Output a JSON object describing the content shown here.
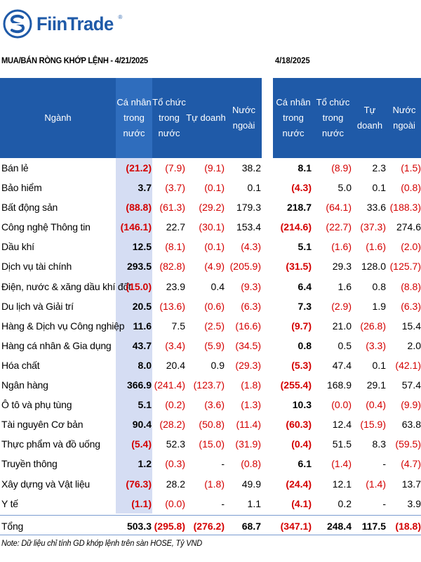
{
  "logo": {
    "text": "FiinTrade",
    "reg": "®"
  },
  "title_left": "MUA/BÁN RÒNG KHỚP LỆNH - 4/21/2025",
  "title_right": "4/18/2025",
  "headers_left": [
    "Ngành",
    "Cá nhân\ntrong\nnước",
    "Tổ chức\ntrong\nnước",
    "Tự doanh",
    "Nước\nngoài"
  ],
  "headers_right": [
    "Cá nhân\ntrong nước",
    "Tổ chức\ntrong\nnước",
    "Tự doanh",
    "Nước\nngoài"
  ],
  "rows": [
    {
      "name": "Bán lẻ",
      "left": [
        "(21.2)",
        "(7.9)",
        "(9.1)",
        "38.2"
      ],
      "right": [
        "8.1",
        "(8.9)",
        "2.3",
        "(1.5)"
      ]
    },
    {
      "name": "Bảo hiểm",
      "left": [
        "3.7",
        "(3.7)",
        "(0.1)",
        "0.1"
      ],
      "right": [
        "(4.3)",
        "5.0",
        "0.1",
        "(0.8)"
      ]
    },
    {
      "name": "Bất động sản",
      "left": [
        "(88.8)",
        "(61.3)",
        "(29.2)",
        "179.3"
      ],
      "right": [
        "218.7",
        "(64.1)",
        "33.6",
        "(188.3)"
      ]
    },
    {
      "name": "Công nghệ Thông tin",
      "left": [
        "(146.1)",
        "22.7",
        "(30.1)",
        "153.4"
      ],
      "right": [
        "(214.6)",
        "(22.7)",
        "(37.3)",
        "274.6"
      ]
    },
    {
      "name": "Dầu khí",
      "left": [
        "12.5",
        "(8.1)",
        "(0.1)",
        "(4.3)"
      ],
      "right": [
        "5.1",
        "(1.6)",
        "(1.6)",
        "(2.0)"
      ]
    },
    {
      "name": "Dịch vụ tài chính",
      "left": [
        "293.5",
        "(82.8)",
        "(4.9)",
        "(205.9)"
      ],
      "right": [
        "(31.5)",
        "29.3",
        "128.0",
        "(125.7)"
      ]
    },
    {
      "name": "Điện, nước & xăng dầu khí đốt",
      "left": [
        "(15.0)",
        "23.9",
        "0.4",
        "(9.3)"
      ],
      "right": [
        "6.4",
        "1.6",
        "0.8",
        "(8.8)"
      ]
    },
    {
      "name": "Du lịch và Giải trí",
      "left": [
        "20.5",
        "(13.6)",
        "(0.6)",
        "(6.3)"
      ],
      "right": [
        "7.3",
        "(2.9)",
        "1.9",
        "(6.3)"
      ]
    },
    {
      "name": "Hàng & Dịch vụ Công nghiệp",
      "left": [
        "11.6",
        "7.5",
        "(2.5)",
        "(16.6)"
      ],
      "right": [
        "(9.7)",
        "21.0",
        "(26.8)",
        "15.4"
      ]
    },
    {
      "name": "Hàng cá nhân & Gia dụng",
      "left": [
        "43.7",
        "(3.4)",
        "(5.9)",
        "(34.5)"
      ],
      "right": [
        "0.8",
        "0.5",
        "(3.3)",
        "2.0"
      ]
    },
    {
      "name": "Hóa chất",
      "left": [
        "8.0",
        "20.4",
        "0.9",
        "(29.3)"
      ],
      "right": [
        "(5.3)",
        "47.4",
        "0.1",
        "(42.1)"
      ]
    },
    {
      "name": "Ngân hàng",
      "left": [
        "366.9",
        "(241.4)",
        "(123.7)",
        "(1.8)"
      ],
      "right": [
        "(255.4)",
        "168.9",
        "29.1",
        "57.4"
      ]
    },
    {
      "name": "Ô tô và phụ tùng",
      "left": [
        "5.1",
        "(0.2)",
        "(3.6)",
        "(1.3)"
      ],
      "right": [
        "10.3",
        "(0.0)",
        "(0.4)",
        "(9.9)"
      ]
    },
    {
      "name": "Tài nguyên Cơ bản",
      "left": [
        "90.4",
        "(28.2)",
        "(50.8)",
        "(11.4)"
      ],
      "right": [
        "(60.3)",
        "12.4",
        "(15.9)",
        "63.8"
      ]
    },
    {
      "name": "Thực phẩm và đồ uống",
      "left": [
        "(5.4)",
        "52.3",
        "(15.0)",
        "(31.9)"
      ],
      "right": [
        "(0.4)",
        "51.5",
        "8.3",
        "(59.5)"
      ]
    },
    {
      "name": "Truyền thông",
      "left": [
        "1.2",
        "(0.3)",
        "-",
        "(0.8)"
      ],
      "right": [
        "6.1",
        "(1.4)",
        "-",
        "(4.7)"
      ]
    },
    {
      "name": "Xây dựng và Vật liệu",
      "left": [
        "(76.3)",
        "28.2",
        "(1.8)",
        "49.9"
      ],
      "right": [
        "(24.4)",
        "12.1",
        "(1.4)",
        "13.7"
      ]
    },
    {
      "name": "Y tế",
      "left": [
        "(1.1)",
        "(0.0)",
        "-",
        "1.1"
      ],
      "right": [
        "(4.1)",
        "0.2",
        "-",
        "3.9"
      ]
    }
  ],
  "total": {
    "name": "Tổng",
    "left": [
      "503.3",
      "(295.8)",
      "(276.2)",
      "68.7"
    ],
    "right": [
      "(347.1)",
      "248.4",
      "117.5",
      "(18.8)"
    ]
  },
  "note": "Note: Dữ liệu chỉ tính GD khớp lệnh trên sàn HOSE, Tỷ VND",
  "colors": {
    "header": "#1f5aa8",
    "highlight": "#d5ddf3",
    "negative": "#d40000"
  }
}
